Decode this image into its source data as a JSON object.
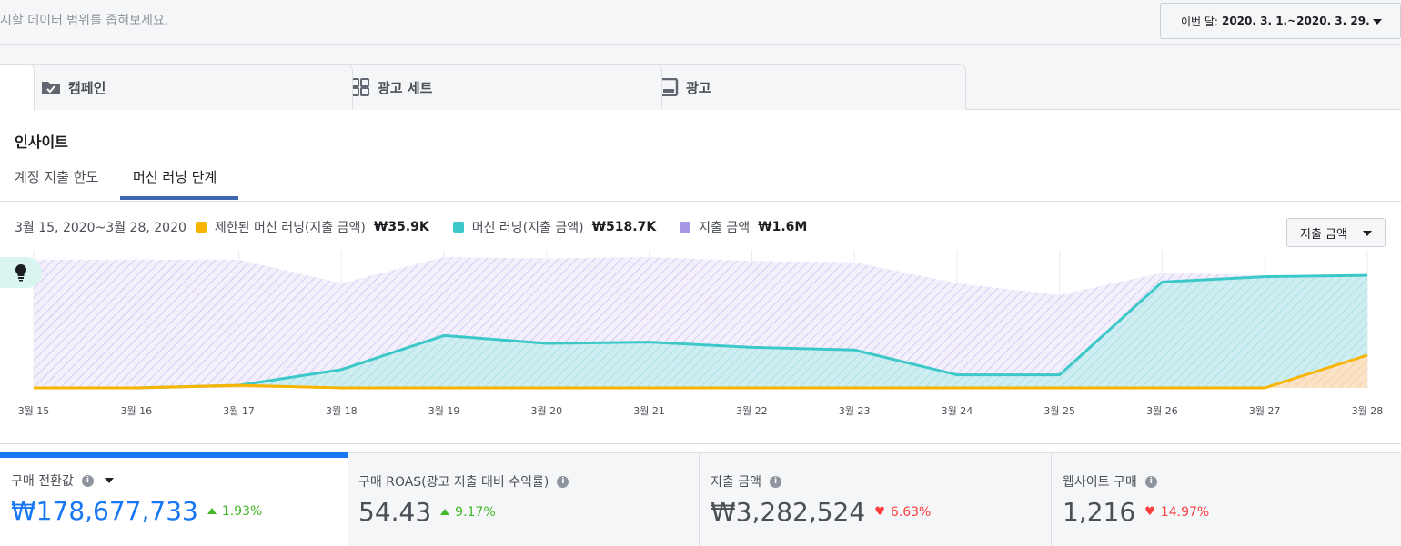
{
  "topbar": {
    "hint": "시할 데이터 범위를 좁혀보세요.",
    "date_label": "이번 달:",
    "date_value": "2020. 3. 1.~2020. 3. 29."
  },
  "tabs": [
    {
      "label": "캠페인",
      "icon": "folder-check-icon"
    },
    {
      "label": "광고 세트",
      "icon": "grid-icon"
    },
    {
      "label": "광고",
      "icon": "ad-icon"
    }
  ],
  "insights": {
    "title": "인사이트",
    "subtabs": [
      "계정 지출 한도",
      "머신 러닝 단계"
    ],
    "active_subtab": 1
  },
  "legend": {
    "date_range": "3월 15, 2020~3월 28, 2020",
    "items": [
      {
        "label": "제한된 머신 러닝(지출 금액)",
        "amount": "₩35.9K",
        "color": "#f7b500"
      },
      {
        "label": "머신 러닝(지출 금액)",
        "amount": "₩518.7K",
        "color": "#3cc8c8"
      },
      {
        "label": "지출 금액",
        "amount": "₩1.6M",
        "color": "#a996e6"
      }
    ]
  },
  "metric_select": "지출 금액",
  "chart_data": {
    "type": "area",
    "x": [
      "3월 15",
      "3월 16",
      "3월 17",
      "3월 18",
      "3월 19",
      "3월 20",
      "3월 21",
      "3월 22",
      "3월 23",
      "3월 24",
      "3월 25",
      "3월 26",
      "3월 27",
      "3월 28"
    ],
    "ylim": [
      0,
      100
    ],
    "grid": true,
    "series": [
      {
        "name": "지출 금액",
        "color": "#a996e6",
        "values": [
          98,
          98,
          98,
          80,
          100,
          99,
          100,
          97,
          96,
          80,
          71,
          88,
          86,
          84
        ]
      },
      {
        "name": "머신 러닝(지출 금액)",
        "color": "#3cc8c8",
        "values": [
          0,
          0,
          2,
          14,
          40,
          34,
          35,
          31,
          29,
          10,
          10,
          81,
          85,
          86
        ]
      },
      {
        "name": "제한된 머신 러닝(지출 금액)",
        "color": "#f7b500",
        "values": [
          0,
          0,
          2,
          0,
          0,
          0,
          0,
          0,
          0,
          0,
          0,
          0,
          0,
          25
        ]
      }
    ]
  },
  "kpis": [
    {
      "name": "구매 전환값",
      "value": "₩178,677,733",
      "change": "1.93%",
      "direction": "up",
      "active": true
    },
    {
      "name": "구매 ROAS(광고 지출 대비 수익률)",
      "value": "54.43",
      "change": "9.17%",
      "direction": "up",
      "active": false
    },
    {
      "name": "지출 금액",
      "value": "₩3,282,524",
      "change": "6.63%",
      "direction": "down",
      "active": false
    },
    {
      "name": "웹사이트 구매",
      "value": "1,216",
      "change": "14.97%",
      "direction": "down",
      "active": false
    }
  ]
}
